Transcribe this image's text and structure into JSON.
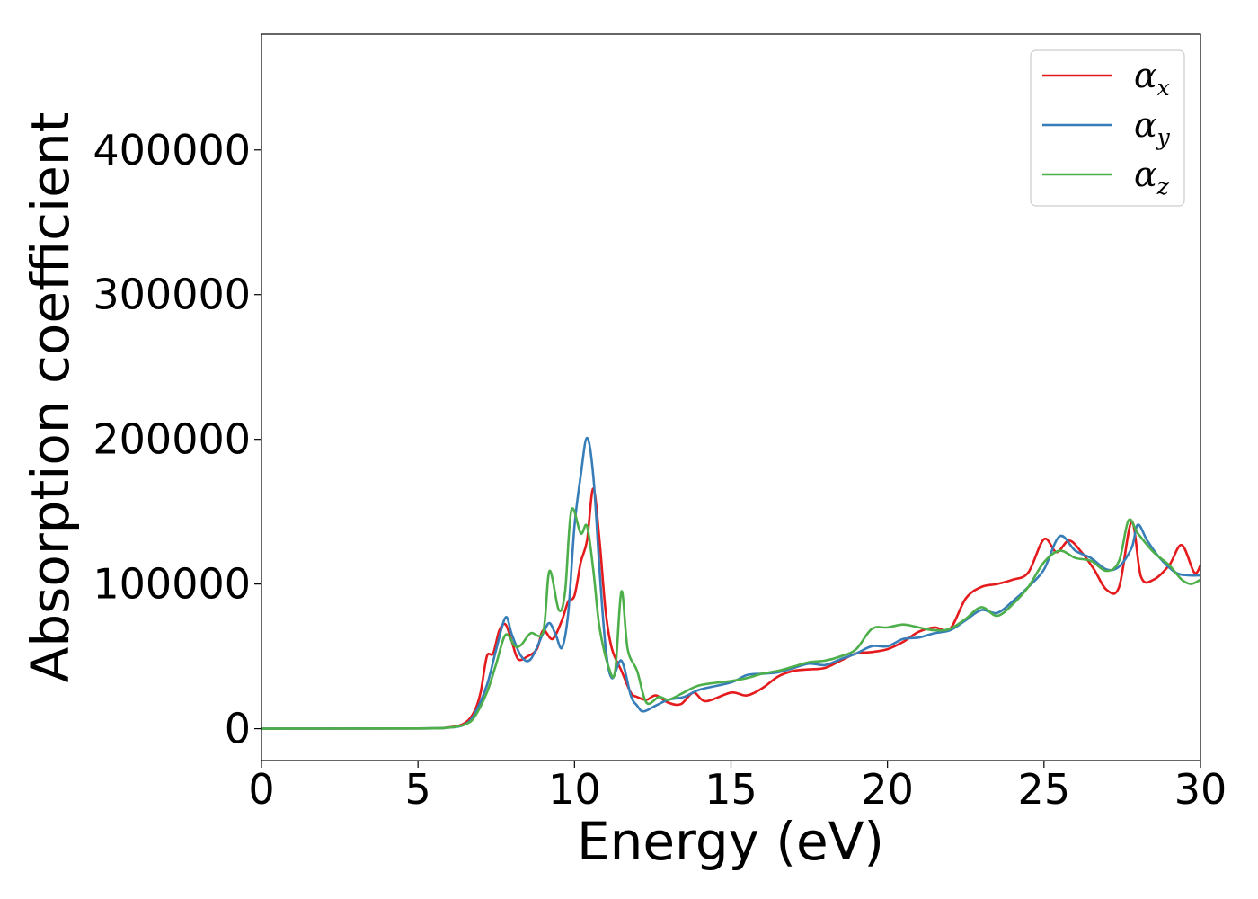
{
  "chart_data": {
    "type": "line",
    "xlabel": "Energy (eV)",
    "ylabel": "Absorption coefficient",
    "xlim": [
      0,
      30
    ],
    "ylim": [
      -22000,
      480000
    ],
    "x_ticks": [
      0,
      5,
      10,
      15,
      20,
      25,
      30
    ],
    "y_ticks": [
      0,
      100000,
      200000,
      300000,
      400000
    ],
    "grid": false,
    "legend": {
      "placement": "top-right",
      "entries": [
        {
          "symbol": "α",
          "sub": "x",
          "color": "#e41a1c"
        },
        {
          "symbol": "α",
          "sub": "y",
          "color": "#377eb8"
        },
        {
          "symbol": "α",
          "sub": "z",
          "color": "#4daf4a"
        }
      ]
    },
    "series": [
      {
        "name": "α_x",
        "color": "#e41a1c",
        "points": [
          [
            0,
            0
          ],
          [
            5,
            200
          ],
          [
            6,
            1000
          ],
          [
            6.5,
            4000
          ],
          [
            6.8,
            12000
          ],
          [
            7.0,
            25000
          ],
          [
            7.2,
            50000
          ],
          [
            7.4,
            52000
          ],
          [
            7.6,
            68000
          ],
          [
            7.8,
            72000
          ],
          [
            8.0,
            60000
          ],
          [
            8.2,
            48000
          ],
          [
            8.5,
            50000
          ],
          [
            8.8,
            55000
          ],
          [
            9.0,
            68000
          ],
          [
            9.3,
            62000
          ],
          [
            9.6,
            75000
          ],
          [
            9.8,
            88000
          ],
          [
            10.0,
            92000
          ],
          [
            10.2,
            115000
          ],
          [
            10.4,
            130000
          ],
          [
            10.6,
            166000
          ],
          [
            10.8,
            130000
          ],
          [
            11.0,
            80000
          ],
          [
            11.2,
            55000
          ],
          [
            11.5,
            40000
          ],
          [
            11.8,
            25000
          ],
          [
            12.0,
            22000
          ],
          [
            12.3,
            20000
          ],
          [
            12.6,
            23000
          ],
          [
            13.0,
            18000
          ],
          [
            13.4,
            17000
          ],
          [
            13.8,
            25000
          ],
          [
            14.2,
            19000
          ],
          [
            15.0,
            25000
          ],
          [
            15.5,
            23000
          ],
          [
            16.0,
            28000
          ],
          [
            16.5,
            36000
          ],
          [
            17.0,
            40000
          ],
          [
            17.5,
            41000
          ],
          [
            18.0,
            42000
          ],
          [
            18.5,
            47000
          ],
          [
            19.0,
            52000
          ],
          [
            19.5,
            53000
          ],
          [
            20.0,
            55000
          ],
          [
            20.5,
            60000
          ],
          [
            21.0,
            67000
          ],
          [
            21.5,
            70000
          ],
          [
            22.0,
            69000
          ],
          [
            22.5,
            90000
          ],
          [
            23.0,
            98000
          ],
          [
            23.5,
            100000
          ],
          [
            24.0,
            103000
          ],
          [
            24.5,
            108000
          ],
          [
            25.0,
            131000
          ],
          [
            25.4,
            122000
          ],
          [
            25.8,
            130000
          ],
          [
            26.2,
            122000
          ],
          [
            26.6,
            110000
          ],
          [
            27.0,
            96000
          ],
          [
            27.4,
            98000
          ],
          [
            27.8,
            143000
          ],
          [
            28.1,
            105000
          ],
          [
            28.5,
            103000
          ],
          [
            29.0,
            113000
          ],
          [
            29.4,
            127000
          ],
          [
            29.8,
            108000
          ],
          [
            30,
            113000
          ]
        ]
      },
      {
        "name": "α_y",
        "color": "#377eb8",
        "points": [
          [
            0,
            0
          ],
          [
            5,
            200
          ],
          [
            6,
            800
          ],
          [
            6.5,
            3000
          ],
          [
            6.8,
            10000
          ],
          [
            7.2,
            30000
          ],
          [
            7.5,
            55000
          ],
          [
            7.8,
            77000
          ],
          [
            8.0,
            65000
          ],
          [
            8.3,
            50000
          ],
          [
            8.6,
            48000
          ],
          [
            9.0,
            66000
          ],
          [
            9.2,
            73000
          ],
          [
            9.4,
            65000
          ],
          [
            9.6,
            56000
          ],
          [
            9.8,
            80000
          ],
          [
            10.0,
            140000
          ],
          [
            10.2,
            175000
          ],
          [
            10.4,
            201000
          ],
          [
            10.6,
            175000
          ],
          [
            10.8,
            110000
          ],
          [
            11.0,
            55000
          ],
          [
            11.2,
            35000
          ],
          [
            11.5,
            47000
          ],
          [
            11.8,
            23000
          ],
          [
            12.0,
            16000
          ],
          [
            12.2,
            12000
          ],
          [
            12.6,
            16000
          ],
          [
            13.0,
            20000
          ],
          [
            13.5,
            22000
          ],
          [
            14.0,
            27000
          ],
          [
            15.0,
            32000
          ],
          [
            15.5,
            37000
          ],
          [
            16.0,
            38000
          ],
          [
            16.5,
            39000
          ],
          [
            17.0,
            42000
          ],
          [
            17.5,
            45000
          ],
          [
            18.0,
            44000
          ],
          [
            18.5,
            48000
          ],
          [
            19.0,
            52000
          ],
          [
            19.5,
            57000
          ],
          [
            20.0,
            57000
          ],
          [
            20.5,
            62000
          ],
          [
            21.0,
            63000
          ],
          [
            21.5,
            66000
          ],
          [
            22.0,
            68000
          ],
          [
            22.5,
            75000
          ],
          [
            23.0,
            82000
          ],
          [
            23.5,
            80000
          ],
          [
            24.0,
            88000
          ],
          [
            24.5,
            98000
          ],
          [
            25.0,
            110000
          ],
          [
            25.5,
            133000
          ],
          [
            26.0,
            123000
          ],
          [
            26.5,
            118000
          ],
          [
            27.0,
            110000
          ],
          [
            27.4,
            112000
          ],
          [
            27.8,
            125000
          ],
          [
            28.0,
            141000
          ],
          [
            28.3,
            130000
          ],
          [
            28.7,
            118000
          ],
          [
            29.2,
            108000
          ],
          [
            29.6,
            106000
          ],
          [
            30,
            106000
          ]
        ]
      },
      {
        "name": "α_z",
        "color": "#4daf4a",
        "points": [
          [
            0,
            0
          ],
          [
            5,
            200
          ],
          [
            6,
            800
          ],
          [
            6.5,
            3000
          ],
          [
            6.8,
            8000
          ],
          [
            7.2,
            25000
          ],
          [
            7.5,
            45000
          ],
          [
            7.8,
            65000
          ],
          [
            8.1,
            57000
          ],
          [
            8.3,
            58000
          ],
          [
            8.6,
            66000
          ],
          [
            9.0,
            67000
          ],
          [
            9.2,
            109000
          ],
          [
            9.5,
            82000
          ],
          [
            9.7,
            95000
          ],
          [
            9.9,
            151000
          ],
          [
            10.2,
            135000
          ],
          [
            10.4,
            140000
          ],
          [
            10.6,
            110000
          ],
          [
            10.8,
            70000
          ],
          [
            11.1,
            42000
          ],
          [
            11.3,
            40000
          ],
          [
            11.5,
            95000
          ],
          [
            11.7,
            55000
          ],
          [
            12.0,
            40000
          ],
          [
            12.3,
            18000
          ],
          [
            12.7,
            22000
          ],
          [
            13.0,
            20000
          ],
          [
            13.4,
            24000
          ],
          [
            14.0,
            30000
          ],
          [
            15.0,
            33000
          ],
          [
            15.5,
            35000
          ],
          [
            16.0,
            38000
          ],
          [
            16.5,
            40000
          ],
          [
            17.0,
            43000
          ],
          [
            17.5,
            46000
          ],
          [
            18.0,
            47000
          ],
          [
            18.5,
            50000
          ],
          [
            19.0,
            55000
          ],
          [
            19.5,
            69000
          ],
          [
            20.0,
            70000
          ],
          [
            20.5,
            72000
          ],
          [
            21.0,
            70000
          ],
          [
            21.5,
            68000
          ],
          [
            22.0,
            69000
          ],
          [
            22.5,
            76000
          ],
          [
            23.0,
            84000
          ],
          [
            23.5,
            78000
          ],
          [
            24.0,
            86000
          ],
          [
            24.5,
            98000
          ],
          [
            25.0,
            115000
          ],
          [
            25.5,
            123000
          ],
          [
            26.0,
            118000
          ],
          [
            26.5,
            116000
          ],
          [
            27.0,
            109000
          ],
          [
            27.4,
            116000
          ],
          [
            27.7,
            144000
          ],
          [
            28.0,
            135000
          ],
          [
            28.5,
            122000
          ],
          [
            29.0,
            113000
          ],
          [
            29.4,
            103000
          ],
          [
            29.7,
            100000
          ],
          [
            30,
            103000
          ]
        ]
      }
    ]
  }
}
